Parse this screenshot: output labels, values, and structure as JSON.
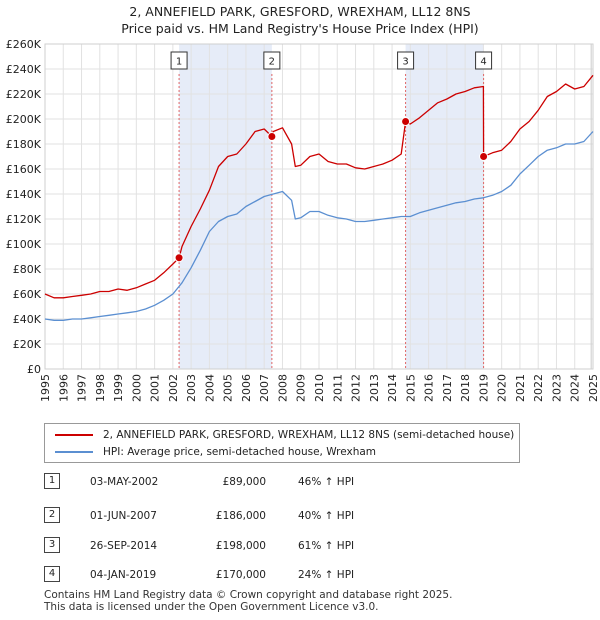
{
  "chart_data": {
    "type": "line",
    "title_line1": "2, ANNEFIELD PARK, GRESFORD, WREXHAM, LL12 8NS",
    "title_line2": "Price paid vs. HM Land Registry's House Price Index (HPI)",
    "xlim": [
      1995,
      2025
    ],
    "ylim": [
      0,
      260000
    ],
    "x_ticks": [
      1995,
      1996,
      1997,
      1998,
      1999,
      2000,
      2001,
      2002,
      2003,
      2004,
      2005,
      2006,
      2007,
      2008,
      2009,
      2010,
      2011,
      2012,
      2013,
      2014,
      2015,
      2016,
      2017,
      2018,
      2019,
      2020,
      2021,
      2022,
      2023,
      2024,
      2025
    ],
    "y_ticks": [
      {
        "value": 0,
        "label": "£0"
      },
      {
        "value": 20000,
        "label": "£20K"
      },
      {
        "value": 40000,
        "label": "£40K"
      },
      {
        "value": 60000,
        "label": "£60K"
      },
      {
        "value": 80000,
        "label": "£80K"
      },
      {
        "value": 100000,
        "label": "£100K"
      },
      {
        "value": 120000,
        "label": "£120K"
      },
      {
        "value": 140000,
        "label": "£140K"
      },
      {
        "value": 160000,
        "label": "£160K"
      },
      {
        "value": 180000,
        "label": "£180K"
      },
      {
        "value": 200000,
        "label": "£200K"
      },
      {
        "value": 220000,
        "label": "£220K"
      },
      {
        "value": 240000,
        "label": "£240K"
      },
      {
        "value": 260000,
        "label": "£260K"
      }
    ],
    "shaded_ranges": [
      [
        2002.34,
        2007.42
      ],
      [
        2014.74,
        2019.01
      ]
    ],
    "series": [
      {
        "name": "2, ANNEFIELD PARK, GRESFORD, WREXHAM, LL12 8NS (semi-detached house)",
        "color": "#cc0000",
        "x": [
          1995,
          1995.5,
          1996,
          1996.5,
          1997,
          1997.5,
          1998,
          1998.5,
          1999,
          1999.5,
          2000,
          2000.5,
          2001,
          2001.5,
          2002,
          2002.34,
          2002.5,
          2003,
          2003.5,
          2004,
          2004.5,
          2005,
          2005.5,
          2006,
          2006.5,
          2007,
          2007.42,
          2007.5,
          2008,
          2008.5,
          2008.7,
          2009,
          2009.5,
          2010,
          2010.5,
          2011,
          2011.5,
          2012,
          2012.5,
          2013,
          2013.5,
          2014,
          2014.5,
          2014.74,
          2015,
          2015.5,
          2016,
          2016.5,
          2017,
          2017.5,
          2018,
          2018.5,
          2019.0,
          2019.01,
          2019.5,
          2020,
          2020.5,
          2021,
          2021.5,
          2022,
          2022.5,
          2023,
          2023.5,
          2024,
          2024.5,
          2025
        ],
        "y": [
          60000,
          57000,
          57000,
          58000,
          59000,
          60000,
          62000,
          62000,
          64000,
          63000,
          65000,
          68000,
          71000,
          77000,
          84000,
          89000,
          98000,
          114000,
          128000,
          143000,
          162000,
          170000,
          172000,
          180000,
          190000,
          192000,
          186000,
          190000,
          193000,
          180000,
          162000,
          163000,
          170000,
          172000,
          166000,
          164000,
          164000,
          161000,
          160000,
          162000,
          164000,
          167000,
          172000,
          198000,
          196000,
          201000,
          207000,
          213000,
          216000,
          220000,
          222000,
          225000,
          226000,
          170000,
          173000,
          175000,
          182000,
          192000,
          198000,
          207000,
          218000,
          222000,
          228000,
          224000,
          226000,
          235000
        ]
      },
      {
        "name": "HPI: Average price, semi-detached house, Wrexham",
        "color": "#5b8fd1",
        "x": [
          1995,
          1995.5,
          1996,
          1996.5,
          1997,
          1997.5,
          1998,
          1998.5,
          1999,
          1999.5,
          2000,
          2000.5,
          2001,
          2001.5,
          2002,
          2002.5,
          2003,
          2003.5,
          2004,
          2004.5,
          2005,
          2005.5,
          2006,
          2006.5,
          2007,
          2007.5,
          2008,
          2008.5,
          2008.7,
          2009,
          2009.5,
          2010,
          2010.5,
          2011,
          2011.5,
          2012,
          2012.5,
          2013,
          2013.5,
          2014,
          2014.5,
          2015,
          2015.5,
          2016,
          2016.5,
          2017,
          2017.5,
          2018,
          2018.5,
          2019,
          2019.5,
          2020,
          2020.5,
          2021,
          2021.5,
          2022,
          2022.5,
          2023,
          2023.5,
          2024,
          2024.5,
          2025
        ],
        "y": [
          40000,
          39000,
          39000,
          40000,
          40000,
          41000,
          42000,
          43000,
          44000,
          45000,
          46000,
          48000,
          51000,
          55000,
          60000,
          69000,
          81000,
          95000,
          110000,
          118000,
          122000,
          124000,
          130000,
          134000,
          138000,
          140000,
          142000,
          135000,
          120000,
          121000,
          126000,
          126000,
          123000,
          121000,
          120000,
          118000,
          118000,
          119000,
          120000,
          121000,
          122000,
          122000,
          125000,
          127000,
          129000,
          131000,
          133000,
          134000,
          136000,
          137000,
          139000,
          142000,
          147000,
          156000,
          163000,
          170000,
          175000,
          177000,
          180000,
          180000,
          182000,
          190000
        ]
      }
    ],
    "sale_markers": [
      {
        "label": "1",
        "x": 2002.34,
        "y": 89000
      },
      {
        "label": "2",
        "x": 2007.42,
        "y": 186000
      },
      {
        "label": "3",
        "x": 2014.74,
        "y": 198000
      },
      {
        "label": "4",
        "x": 2019.01,
        "y": 170000
      }
    ]
  },
  "legend": {
    "property_label": "2, ANNEFIELD PARK, GRESFORD, WREXHAM, LL12 8NS (semi-detached house)",
    "hpi_label": "HPI: Average price, semi-detached house, Wrexham"
  },
  "sales": [
    {
      "num": "1",
      "date": "03-MAY-2002",
      "price": "£89,000",
      "hpi": "46% ↑ HPI"
    },
    {
      "num": "2",
      "date": "01-JUN-2007",
      "price": "£186,000",
      "hpi": "40% ↑ HPI"
    },
    {
      "num": "3",
      "date": "26-SEP-2014",
      "price": "£198,000",
      "hpi": "61% ↑ HPI"
    },
    {
      "num": "4",
      "date": "04-JAN-2019",
      "price": "£170,000",
      "hpi": "24% ↑ HPI"
    }
  ],
  "footer": {
    "line1": "Contains HM Land Registry data © Crown copyright and database right 2025.",
    "line2": "This data is licensed under the Open Government Licence v3.0."
  }
}
